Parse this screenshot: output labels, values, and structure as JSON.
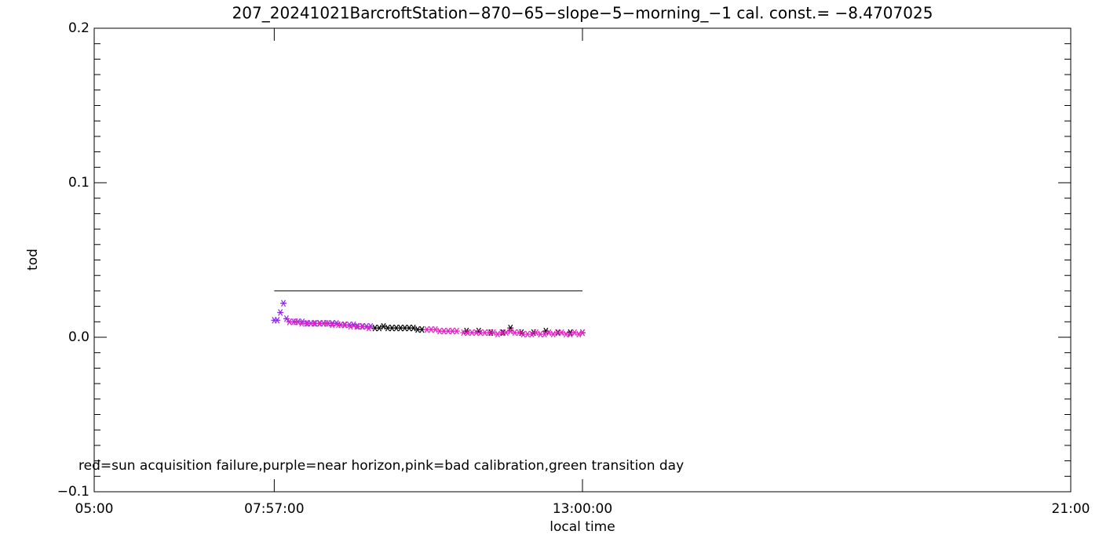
{
  "chart_data": {
    "type": "scatter",
    "title": "207_20241021BarcroftStation−870−65−slope−5−morning_−1 cal. const.= −8.4707025",
    "x_label": "local time",
    "y_label": "tod",
    "annotation": "red=sun acquisition failure,purple=near horizon,pink=bad calibration,green transition day",
    "xlim": [
      5,
      21
    ],
    "xticks": [
      {
        "value": 5,
        "label": "05:00"
      },
      {
        "value": 7.95,
        "label": "07:57:00"
      },
      {
        "value": 13,
        "label": "13:00:00"
      },
      {
        "value": 21,
        "label": "21:00"
      }
    ],
    "ylim": [
      -0.1,
      0.2
    ],
    "yticks": [
      {
        "value": -0.1,
        "label": "−0.1"
      },
      {
        "value": 0,
        "label": "0.0"
      },
      {
        "value": 0.1,
        "label": "0.1"
      },
      0.2
    ],
    "yminorticks": [
      -0.09,
      -0.08,
      -0.07,
      -0.06,
      -0.05,
      -0.04,
      -0.03,
      -0.02,
      -0.01,
      0.01,
      0.02,
      0.03,
      0.04,
      0.05,
      0.06,
      0.07,
      0.08,
      0.09,
      0.11,
      0.12,
      0.13,
      0.14,
      0.15,
      0.16,
      0.17,
      0.18,
      0.19
    ],
    "hline": {
      "value": 0.03,
      "x": [
        7.95,
        13.0
      ],
      "color": "#000000"
    },
    "series": [
      {
        "color": "#8a2be2",
        "x": [
          7.95,
          8.0,
          8.05,
          8.1,
          8.15,
          8.2,
          8.27,
          8.34,
          8.41,
          8.48,
          8.55,
          8.62,
          8.69,
          8.76,
          8.83,
          8.9,
          8.97,
          9.04,
          9.11,
          9.18,
          9.25,
          9.32,
          9.39,
          9.46,
          9.53
        ],
        "values": [
          0.011,
          0.011,
          0.016,
          0.022,
          0.012,
          0.01,
          0.01,
          0.01,
          0.01,
          0.009,
          0.009,
          0.009,
          0.009,
          0.009,
          0.009,
          0.009,
          0.009,
          0.008,
          0.008,
          0.008,
          0.008,
          0.007,
          0.007,
          0.007,
          0.007
        ]
      },
      {
        "color": "#000000",
        "x": [
          9.6,
          9.67,
          9.74,
          9.81,
          9.88,
          9.95,
          10.02,
          10.09,
          10.16,
          10.23,
          10.3,
          10.37,
          11.1,
          11.3,
          11.5,
          11.7,
          11.82,
          12.0,
          12.2,
          12.4,
          12.6,
          12.8,
          13.0
        ],
        "values": [
          0.006,
          0.006,
          0.007,
          0.006,
          0.006,
          0.006,
          0.006,
          0.006,
          0.006,
          0.006,
          0.005,
          0.005,
          0.004,
          0.004,
          0.003,
          0.003,
          0.006,
          0.003,
          0.003,
          0.004,
          0.003,
          0.003,
          0.003
        ]
      },
      {
        "color": "#e020c0",
        "x": [
          8.2,
          8.3,
          8.4,
          8.5,
          8.6,
          8.7,
          8.8,
          8.9,
          9.0,
          9.1,
          9.2,
          9.3,
          9.4,
          9.5,
          10.45,
          10.52,
          10.59,
          10.66,
          10.73,
          10.8,
          10.87,
          10.94,
          11.05,
          11.12,
          11.19,
          11.26,
          11.33,
          11.4,
          11.47,
          11.54,
          11.61,
          11.68,
          11.75,
          11.82,
          11.89,
          11.96,
          12.03,
          12.1,
          12.17,
          12.24,
          12.31,
          12.38,
          12.45,
          12.52,
          12.59,
          12.66,
          12.73,
          12.8,
          12.87,
          12.94,
          13.0
        ],
        "values": [
          0.01,
          0.01,
          0.009,
          0.009,
          0.009,
          0.009,
          0.009,
          0.008,
          0.008,
          0.008,
          0.007,
          0.007,
          0.007,
          0.006,
          0.005,
          0.005,
          0.005,
          0.004,
          0.004,
          0.004,
          0.004,
          0.004,
          0.003,
          0.003,
          0.003,
          0.003,
          0.003,
          0.003,
          0.003,
          0.003,
          0.002,
          0.003,
          0.003,
          0.004,
          0.003,
          0.003,
          0.002,
          0.002,
          0.002,
          0.003,
          0.002,
          0.002,
          0.003,
          0.002,
          0.003,
          0.003,
          0.002,
          0.002,
          0.003,
          0.002,
          0.003
        ]
      }
    ]
  }
}
